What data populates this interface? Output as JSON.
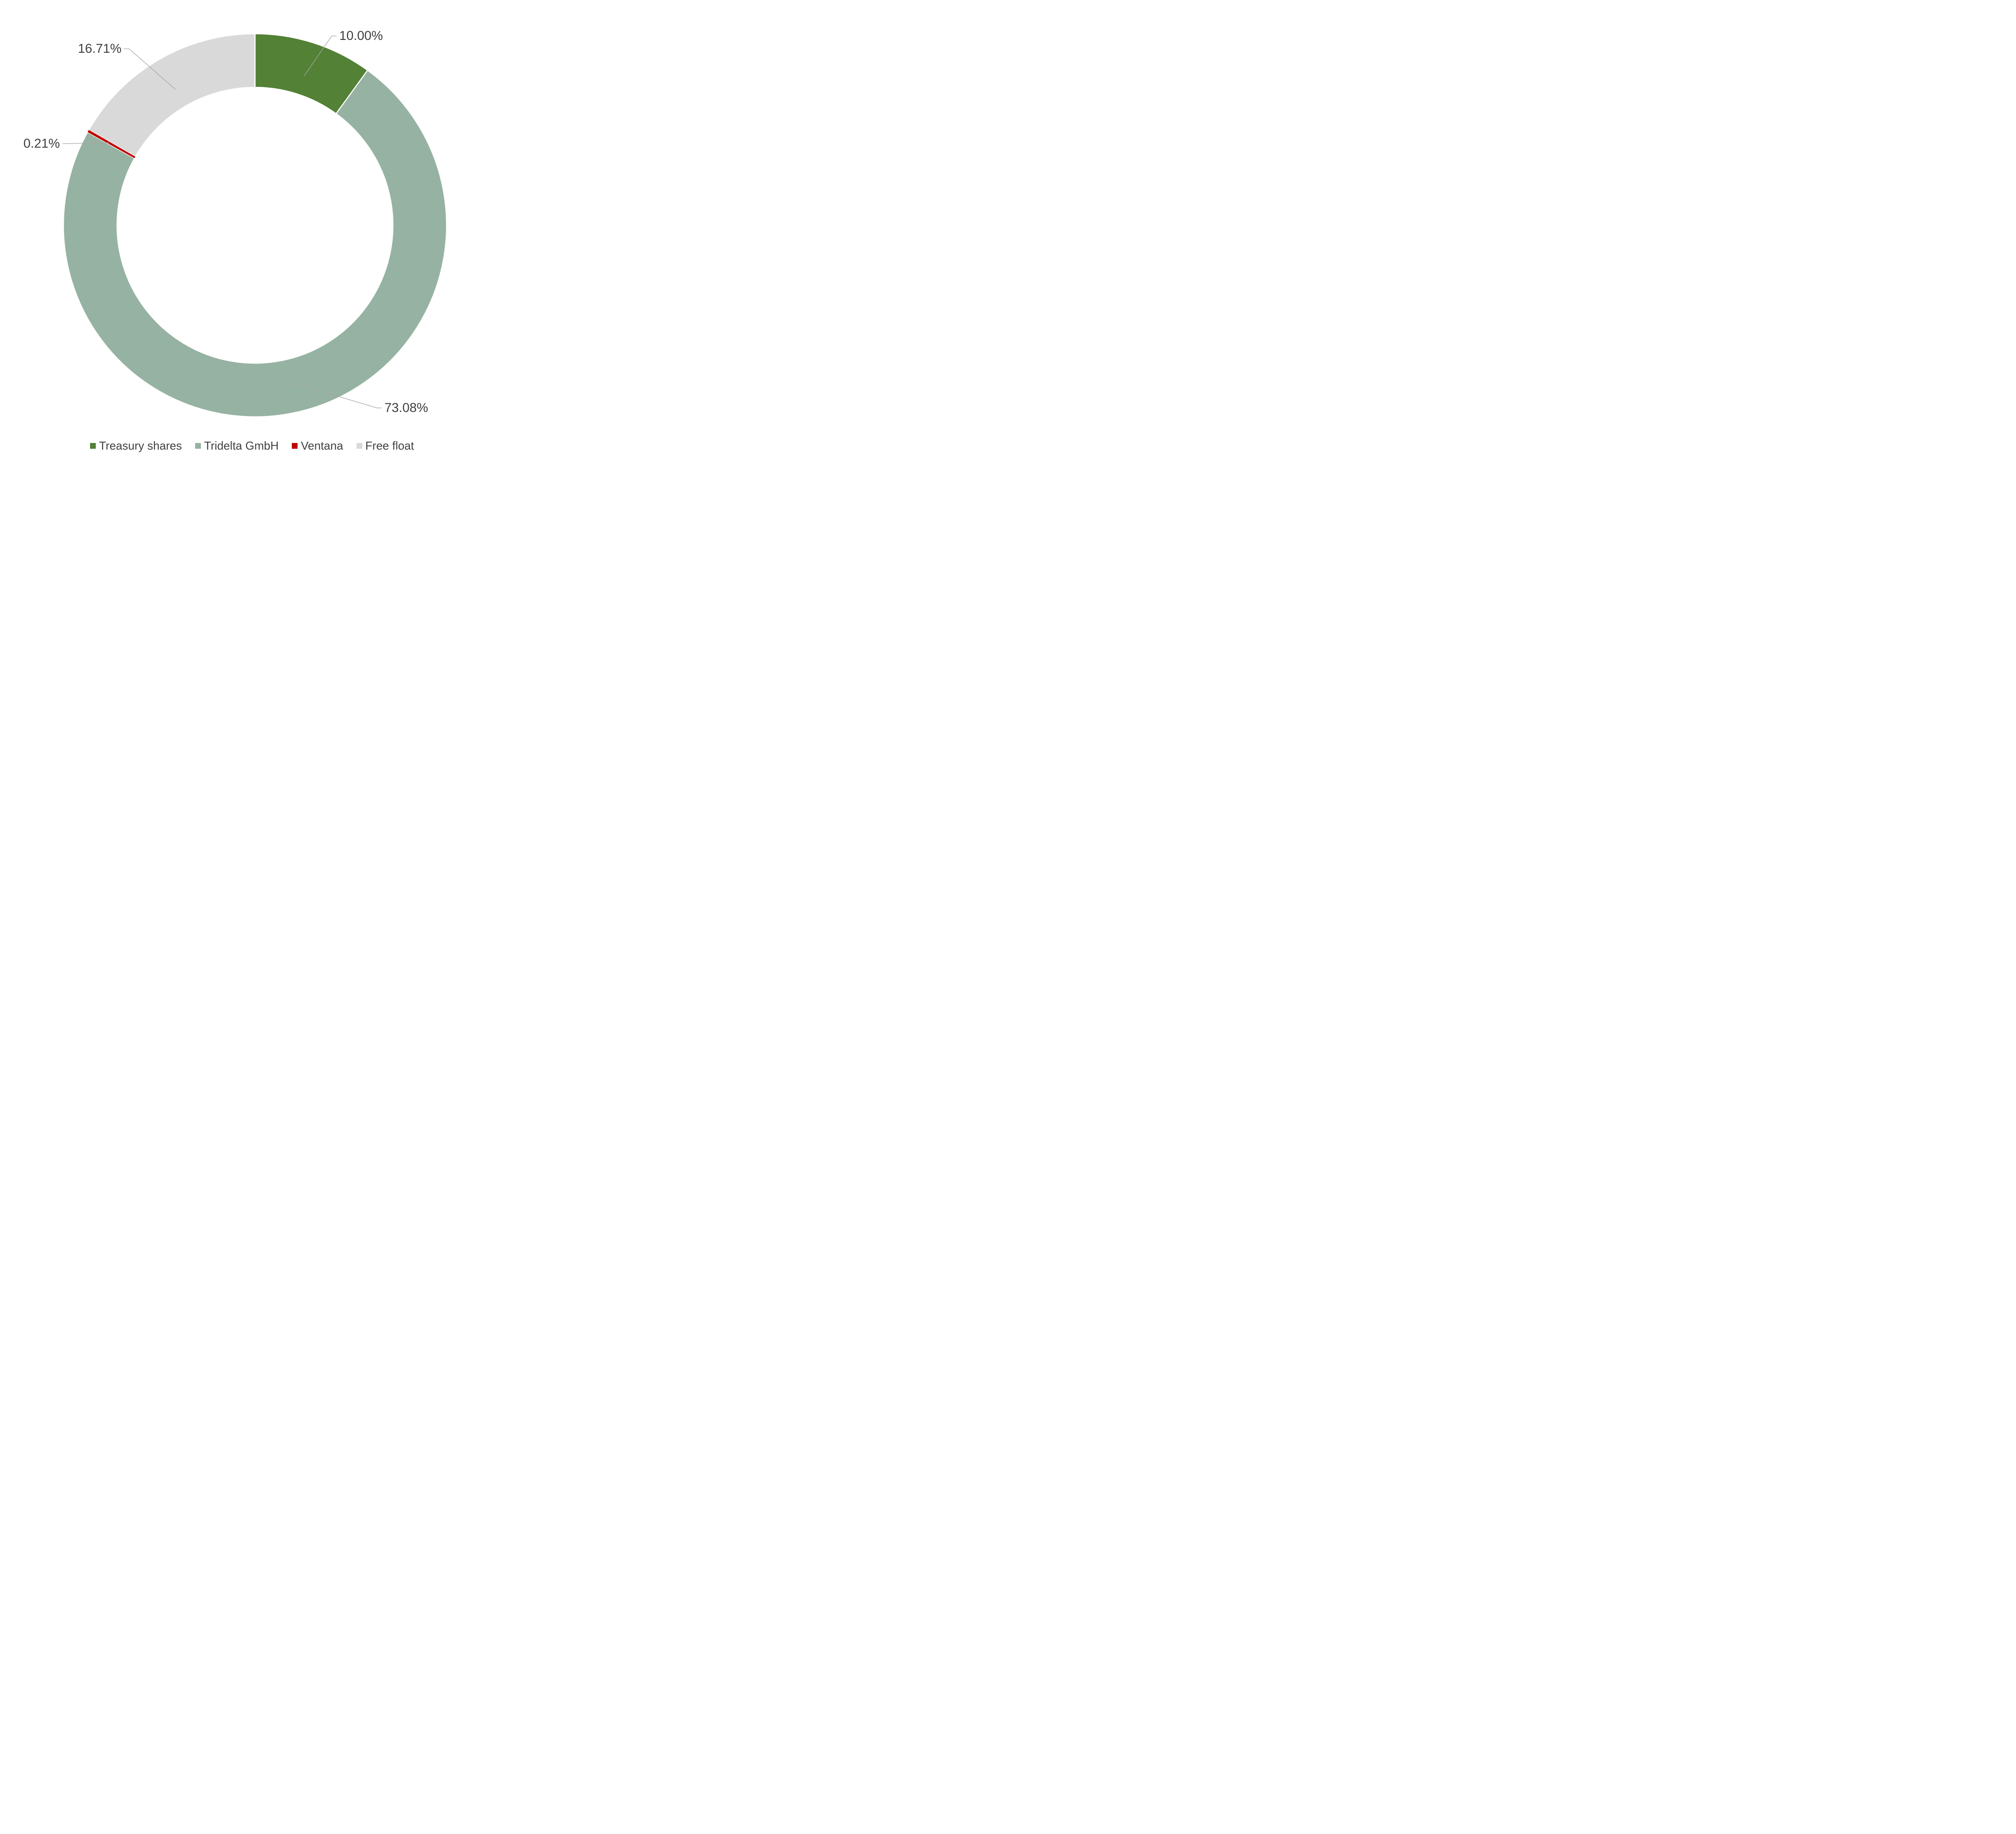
{
  "chart_data": {
    "type": "pie",
    "subtype": "donut",
    "title": "",
    "direction": "clockwise",
    "start_angle_deg": 0,
    "donut_hole_ratio": 0.72,
    "legend_position": "bottom",
    "background_color": "#ffffff",
    "label_text_color": "#404040",
    "leader_line_color": "#a6a6a6",
    "slice_border_color": "#ffffff",
    "total": 100,
    "slices": [
      {
        "id": "treasury-shares",
        "label": "Treasury shares",
        "value": 10.0,
        "display": "10.00%",
        "color": "#538135"
      },
      {
        "id": "tridelta-gmbh",
        "label": "Tridelta GmbH",
        "value": 73.08,
        "display": "73.08%",
        "color": "#96b2a2"
      },
      {
        "id": "ventana",
        "label": "Ventana",
        "value": 0.21,
        "display": "0.21%",
        "color": "#c00000"
      },
      {
        "id": "free-float",
        "label": "Free float",
        "value": 16.71,
        "display": "16.71%",
        "color": "#d9d9d9"
      }
    ]
  }
}
